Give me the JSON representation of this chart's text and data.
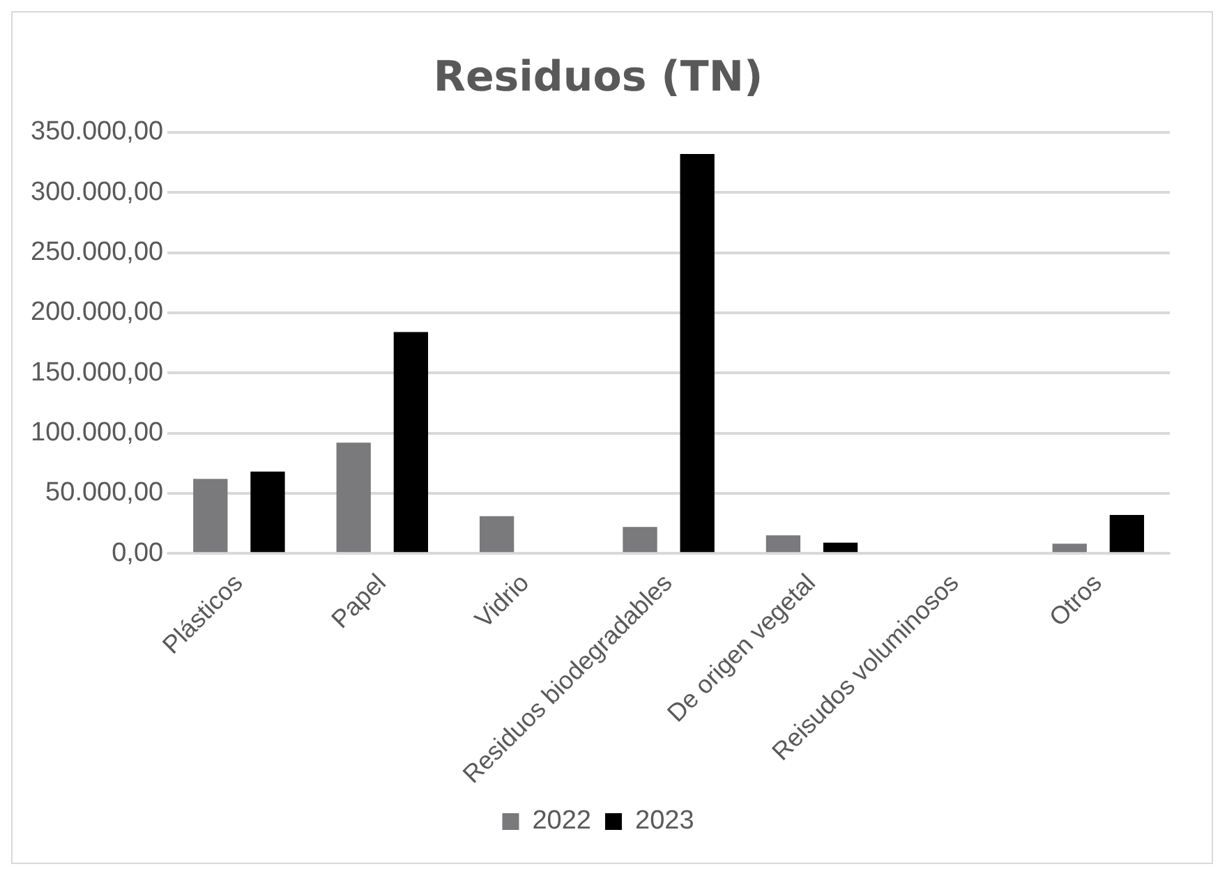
{
  "chart_data": {
    "type": "bar",
    "title": "Residuos (TN)",
    "categories": [
      "Plásticos",
      "Papel",
      "Vidrio",
      "Residuos biodegradables",
      "De origen vegetal",
      "Reisudos voluminosos",
      "Otros"
    ],
    "series": [
      {
        "name": "2022",
        "color": "#7a7a7d",
        "values": [
          62000,
          92000,
          31000,
          22000,
          15000,
          null,
          8000
        ]
      },
      {
        "name": "2023",
        "color": "#000000",
        "values": [
          68000,
          184000,
          null,
          332000,
          9000,
          null,
          32000
        ]
      }
    ],
    "ylim": [
      0,
      350000
    ],
    "yticks": [
      {
        "value": 0,
        "label": "0,00"
      },
      {
        "value": 50000,
        "label": "50.000,00"
      },
      {
        "value": 100000,
        "label": "100.000,00"
      },
      {
        "value": 150000,
        "label": "150.000,00"
      },
      {
        "value": 200000,
        "label": "200.000,00"
      },
      {
        "value": 250000,
        "label": "250.000,00"
      },
      {
        "value": 300000,
        "label": "300.000,00"
      },
      {
        "value": 350000,
        "label": "350.000,00"
      }
    ],
    "grid": "y",
    "legend": "bottom"
  }
}
